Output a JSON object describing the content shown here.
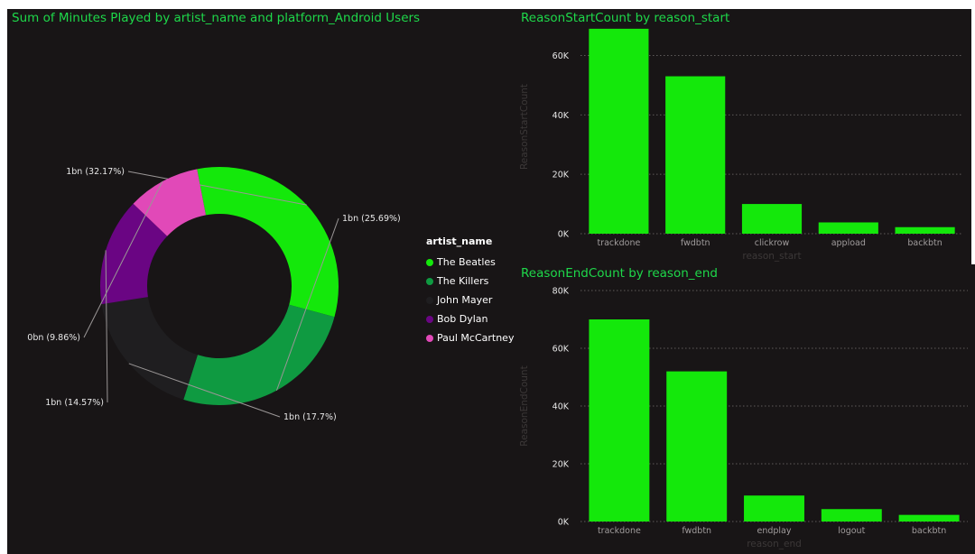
{
  "theme": {
    "panel_bg": "#181516",
    "title_color": "#1ed84a",
    "bar_color": "#14e80b",
    "grid_color": "#5e5a5a",
    "tick_color": "#a09c9c",
    "axis_title_color": "#3c3838",
    "label_color": "#e8e8e8",
    "leader_color": "#9a9696"
  },
  "chart_data": [
    {
      "type": "donut",
      "title": "Sum of Minutes Played by artist_name and platform_Android Users",
      "legend_title": "artist_name",
      "legend_position": "right",
      "slices": [
        {
          "name": "The Beatles",
          "percent": 32.17,
          "label": "1bn (32.17%)",
          "color": "#14e80b"
        },
        {
          "name": "The Killers",
          "percent": 25.69,
          "label": "1bn (25.69%)",
          "color": "#0f9a41"
        },
        {
          "name": "John Mayer",
          "percent": 17.7,
          "label": "1bn (17.7%)",
          "color": "#1f1e20"
        },
        {
          "name": "Bob Dylan",
          "percent": 14.57,
          "label": "1bn (14.57%)",
          "color": "#6a0583"
        },
        {
          "name": "Paul McCartney",
          "percent": 9.86,
          "label": "0bn (9.86%)",
          "color": "#e149b8"
        }
      ]
    },
    {
      "type": "bar",
      "title": "ReasonStartCount by reason_start",
      "xlabel": "reason_start",
      "ylabel": "ReasonStartCount",
      "categories": [
        "trackdone",
        "fwdbtn",
        "clickrow",
        "appload",
        "backbtn"
      ],
      "values": [
        69000,
        53000,
        10000,
        3800,
        2200
      ],
      "ylim": [
        0,
        72000
      ],
      "yticks": [
        {
          "value": 0,
          "label": "0K"
        },
        {
          "value": 20000,
          "label": "20K"
        },
        {
          "value": 40000,
          "label": "40K"
        },
        {
          "value": 60000,
          "label": "60K"
        }
      ],
      "grid": true
    },
    {
      "type": "bar",
      "title": "ReasonEndCount by reason_end",
      "xlabel": "reason_end",
      "ylabel": "ReasonEndCount",
      "categories": [
        "trackdone",
        "fwdbtn",
        "endplay",
        "logout",
        "backbtn"
      ],
      "values": [
        70000,
        52000,
        9000,
        4300,
        2300
      ],
      "ylim": [
        0,
        80000
      ],
      "yticks": [
        {
          "value": 0,
          "label": "0K"
        },
        {
          "value": 20000,
          "label": "20K"
        },
        {
          "value": 40000,
          "label": "40K"
        },
        {
          "value": 60000,
          "label": "60K"
        },
        {
          "value": 80000,
          "label": "80K"
        }
      ],
      "grid": true
    }
  ]
}
